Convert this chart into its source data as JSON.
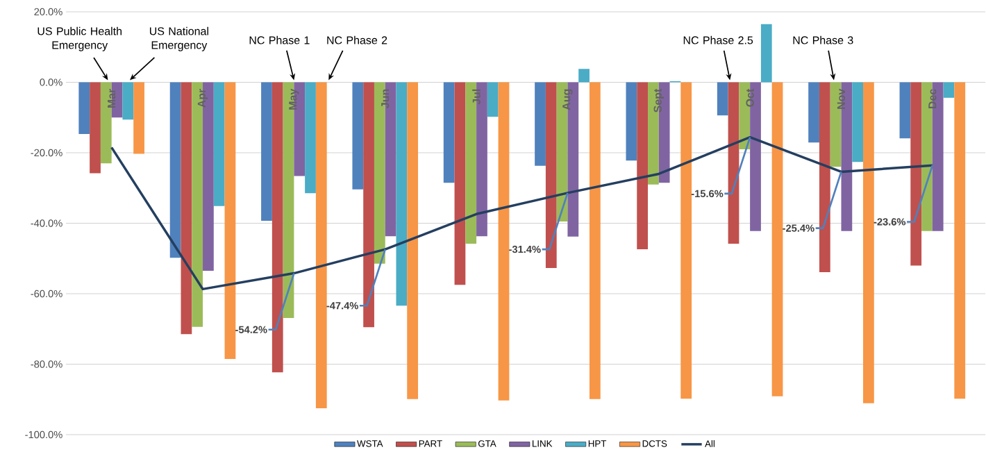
{
  "chart_data": {
    "type": "bar",
    "categories": [
      "Mar",
      "Apr",
      "May",
      "Jun",
      "Jul",
      "Aug",
      "Sept",
      "Oct",
      "Nov",
      "Dec"
    ],
    "series": [
      {
        "name": "WSTA",
        "color": "#4f81bd",
        "values": [
          -14.7,
          -49.8,
          -39.3,
          -30.4,
          -28.5,
          -23.7,
          -22.2,
          -9.4,
          -17.1,
          -15.9
        ]
      },
      {
        "name": "PART",
        "color": "#c0504d",
        "values": [
          -25.8,
          -71.5,
          -82.3,
          -69.5,
          -57.5,
          -52.7,
          -47.4,
          -45.8,
          -53.9,
          -52.0
        ]
      },
      {
        "name": "GTA",
        "color": "#9bbb59",
        "values": [
          -23.0,
          -69.4,
          -66.9,
          -51.5,
          -45.8,
          -39.5,
          -29.0,
          -19.0,
          -24.0,
          -42.2
        ]
      },
      {
        "name": "LINK",
        "color": "#8064a2",
        "values": [
          -10.0,
          -53.5,
          -26.6,
          -43.7,
          -43.7,
          -43.8,
          -28.5,
          -42.2,
          -42.2,
          -42.2
        ]
      },
      {
        "name": "HPT",
        "color": "#4bacc6",
        "values": [
          -10.6,
          -35.1,
          -31.5,
          -63.4,
          -9.8,
          3.8,
          0.3,
          16.5,
          -22.6,
          -4.4
        ]
      },
      {
        "name": "DCTS",
        "color": "#f79646",
        "values": [
          -20.3,
          -78.5,
          -92.5,
          -89.9,
          -90.3,
          -89.9,
          -89.8,
          -89.1,
          -91.1,
          -89.8
        ]
      },
      {
        "name": "All",
        "type": "line",
        "color": "#243f60",
        "values": [
          -18.5,
          -58.7,
          -54.2,
          -47.4,
          -37.4,
          -31.4,
          -26.0,
          -15.6,
          -25.4,
          -23.6
        ],
        "value_labels": [
          null,
          null,
          "-54.2%",
          "-47.4%",
          null,
          "-31.4%",
          null,
          "-15.6%",
          "-25.4%",
          "-23.6%"
        ]
      }
    ],
    "ylim": [
      -100,
      20
    ],
    "yticks": [
      {
        "value": -100,
        "label": "-100.0%"
      },
      {
        "value": -80,
        "label": "-80.0%"
      },
      {
        "value": -60,
        "label": "-60.0%"
      },
      {
        "value": -40,
        "label": "-40.0%"
      },
      {
        "value": -20,
        "label": "-20.0%"
      },
      {
        "value": 0,
        "label": "0.0%"
      },
      {
        "value": 20,
        "label": "20.0%"
      }
    ],
    "grid": "y",
    "legend": "bottom",
    "annotations": [
      "US Public Health Emergency",
      "US National Emergency",
      "NC Phase 1",
      "NC Phase 2",
      "NC Phase 2.5",
      "NC Phase 3"
    ]
  }
}
